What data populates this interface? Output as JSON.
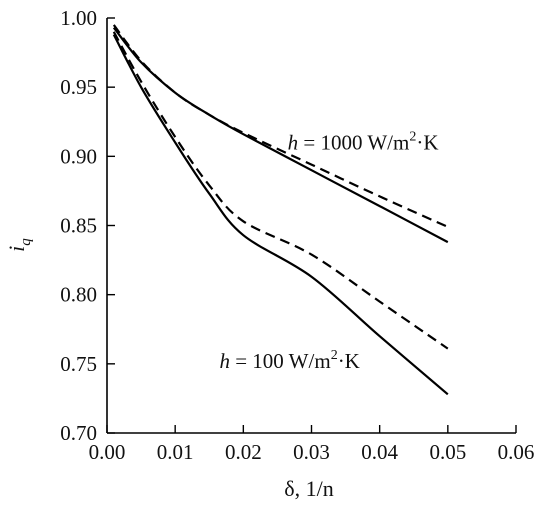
{
  "chart_data": {
    "type": "line",
    "title": "",
    "xlabel": "δ, 1/n",
    "ylabel": "i",
    "ylabel_sub": "q",
    "xlim": [
      0.0,
      0.06
    ],
    "ylim": [
      0.7,
      1.0
    ],
    "xticks": [
      "0.00",
      "0.01",
      "0.02",
      "0.03",
      "0.04",
      "0.05",
      "0.06"
    ],
    "yticks": [
      "0.70",
      "0.75",
      "0.80",
      "0.85",
      "0.90",
      "0.95",
      "1.00"
    ],
    "grid": false,
    "legend": "none",
    "annotations": [
      {
        "var": "h",
        "rest": " = 1000 W/m",
        "sup": "2",
        "tail": "·K",
        "x": 0.0265,
        "y": 0.905
      },
      {
        "var": "h",
        "rest": " = 100 W/m",
        "sup": "2",
        "tail": "·K",
        "x": 0.0165,
        "y": 0.747
      }
    ],
    "series": [
      {
        "style": "solid",
        "x": [
          0.001,
          0.005,
          0.01,
          0.015,
          0.02,
          0.03,
          0.04,
          0.05
        ],
        "y": [
          0.993,
          0.968,
          0.946,
          0.93,
          0.916,
          0.89,
          0.864,
          0.838
        ]
      },
      {
        "style": "dashed",
        "x": [
          0.001,
          0.005,
          0.01,
          0.015,
          0.02,
          0.03,
          0.04,
          0.05
        ],
        "y": [
          0.995,
          0.969,
          0.946,
          0.93,
          0.917,
          0.894,
          0.871,
          0.849
        ]
      },
      {
        "style": "solid",
        "x": [
          0.001,
          0.005,
          0.01,
          0.015,
          0.02,
          0.03,
          0.04,
          0.05
        ],
        "y": [
          0.988,
          0.95,
          0.91,
          0.873,
          0.843,
          0.813,
          0.77,
          0.728
        ]
      },
      {
        "style": "dashed",
        "x": [
          0.001,
          0.005,
          0.01,
          0.015,
          0.02,
          0.03,
          0.04,
          0.05
        ],
        "y": [
          0.99,
          0.954,
          0.914,
          0.879,
          0.853,
          0.829,
          0.795,
          0.761
        ]
      }
    ]
  }
}
